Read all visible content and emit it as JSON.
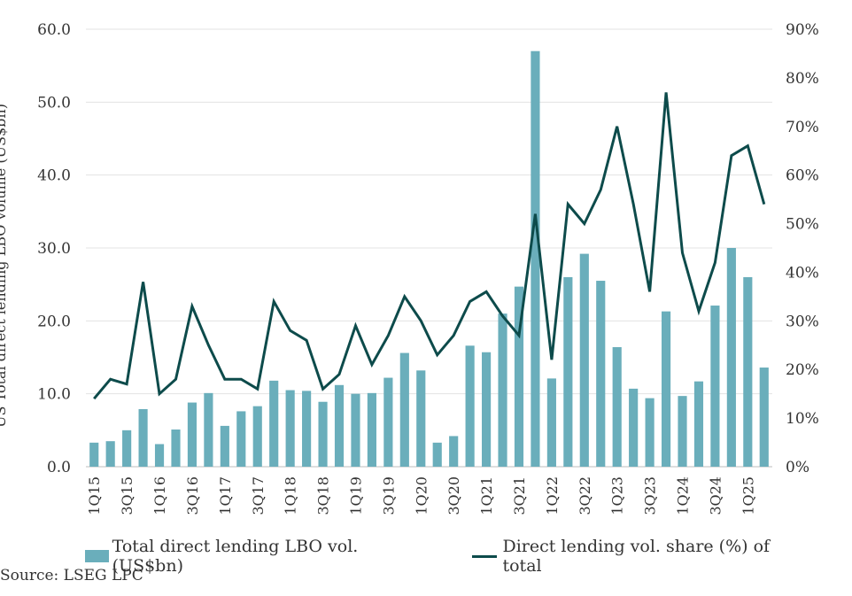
{
  "chart_data": {
    "type": "bar+line",
    "categories": [
      "1Q15",
      "2Q15",
      "3Q15",
      "4Q15",
      "1Q16",
      "2Q16",
      "3Q16",
      "4Q16",
      "1Q17",
      "2Q17",
      "3Q17",
      "4Q17",
      "1Q18",
      "2Q18",
      "3Q18",
      "4Q18",
      "1Q19",
      "2Q19",
      "3Q19",
      "4Q19",
      "1Q20",
      "2Q20",
      "3Q20",
      "4Q20",
      "1Q21",
      "2Q21",
      "3Q21",
      "4Q21",
      "1Q22",
      "2Q22",
      "3Q22",
      "4Q22",
      "1Q23",
      "2Q23",
      "3Q23",
      "4Q23",
      "1Q24",
      "2Q24",
      "3Q24",
      "4Q24",
      "1Q25",
      "2Q25"
    ],
    "x_tick_labels": [
      "1Q15",
      "3Q15",
      "1Q16",
      "3Q16",
      "1Q17",
      "3Q17",
      "1Q18",
      "3Q18",
      "1Q19",
      "3Q19",
      "1Q20",
      "3Q20",
      "1Q21",
      "3Q21",
      "1Q22",
      "3Q22",
      "1Q23",
      "3Q23",
      "1Q24",
      "3Q24",
      "1Q25"
    ],
    "series": [
      {
        "name": "Total direct lending LBO vol. (US$bn)",
        "type": "bar",
        "axis": "left",
        "color": "#6aaebb",
        "values": [
          3.3,
          3.5,
          5.0,
          7.9,
          3.1,
          5.1,
          8.8,
          10.1,
          5.6,
          7.6,
          8.3,
          11.8,
          10.5,
          10.4,
          8.9,
          11.2,
          10.0,
          10.1,
          12.2,
          15.6,
          13.2,
          3.3,
          4.2,
          16.6,
          15.7,
          21.0,
          24.7,
          57.0,
          12.1,
          26.0,
          29.2,
          25.5,
          16.4,
          10.7,
          9.4,
          21.3,
          9.7,
          11.7,
          22.1,
          30.0,
          26.0,
          13.6
        ]
      },
      {
        "name": "Direct lending vol. share (%) of total",
        "type": "line",
        "axis": "right",
        "color": "#0d4b4b",
        "values": [
          14,
          18,
          17,
          38,
          15,
          18,
          33,
          25,
          18,
          18,
          16,
          34,
          28,
          26,
          16,
          19,
          29,
          21,
          27,
          35,
          30,
          23,
          27,
          34,
          36,
          31,
          27,
          52,
          22,
          54,
          50,
          57,
          70,
          54,
          36,
          77,
          44,
          32,
          42,
          64,
          66,
          54
        ]
      }
    ],
    "left_axis": {
      "ylim": [
        0,
        60
      ],
      "ticks": [
        "0.0",
        "10.0",
        "20.0",
        "30.0",
        "40.0",
        "50.0",
        "60.0"
      ],
      "label": "US Total direct lending LBO volume (US$bn)"
    },
    "right_axis": {
      "ylim": [
        0,
        90
      ],
      "ticks": [
        "0%",
        "10%",
        "20%",
        "30%",
        "40%",
        "50%",
        "60%",
        "70%",
        "80%",
        "90%"
      ]
    },
    "grid": true,
    "legend_position": "bottom"
  },
  "legend": {
    "bar_label": "Total direct lending LBO vol. (US$bn)",
    "line_label": "Direct lending vol. share (%) of total"
  },
  "source": "Source:  LSEG LPC"
}
